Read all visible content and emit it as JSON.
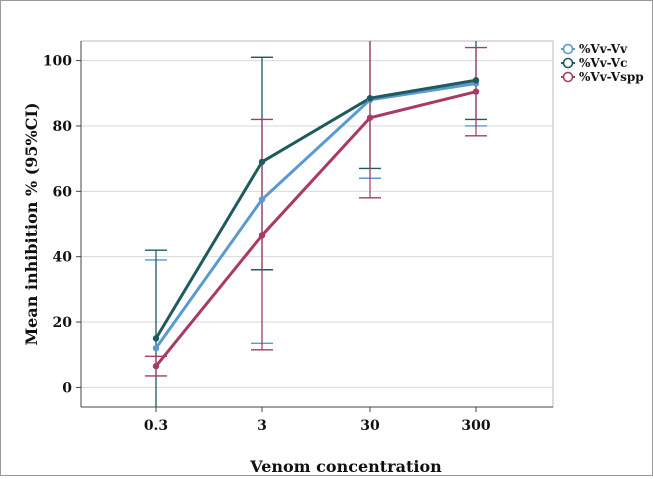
{
  "chart_data": {
    "type": "line",
    "title": "",
    "xlabel": "Venom concentration",
    "ylabel": "Mean inhibition % (95%CI)",
    "categories": [
      "0.3",
      "3",
      "30",
      "300"
    ],
    "y_ticks": [
      0,
      20,
      40,
      60,
      80,
      100
    ],
    "ylim": [
      -6,
      106
    ],
    "grid": "horizontal",
    "legend_position": "top-right",
    "series": [
      {
        "name": "%Vv-Vv",
        "color": "#5a9ad0",
        "values": [
          12,
          57.5,
          88,
          93
        ],
        "ci_low": [
          -6,
          13.5,
          64,
          80
        ],
        "ci_high": [
          39,
          101,
          106,
          106
        ]
      },
      {
        "name": "%Vv-Vc",
        "color": "#1e5a5e",
        "values": [
          15,
          69,
          88.5,
          94
        ],
        "ci_low": [
          -6,
          36,
          67,
          82
        ],
        "ci_high": [
          42,
          101,
          106,
          106
        ]
      },
      {
        "name": "%Vv-Vspp",
        "color": "#a83a63",
        "values": [
          6.5,
          46.5,
          82.5,
          90.5
        ],
        "ci_low": [
          3.5,
          11.5,
          58,
          77
        ],
        "ci_high": [
          9.5,
          82,
          106,
          104
        ]
      }
    ]
  }
}
